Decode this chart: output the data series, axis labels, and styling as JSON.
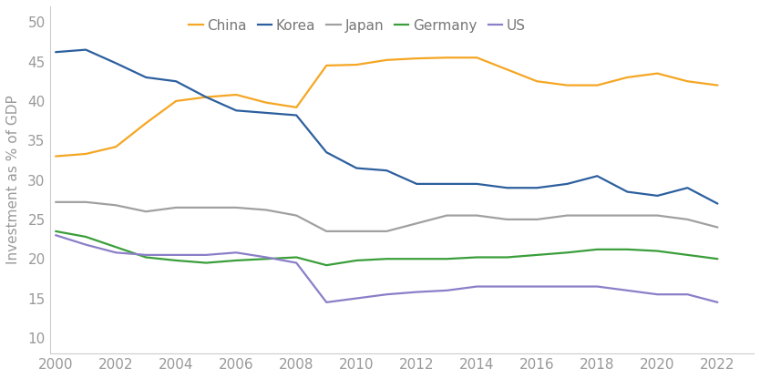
{
  "ylabel": "Investment as % of GDP",
  "ylim": [
    8,
    52
  ],
  "yticks": [
    10,
    15,
    20,
    25,
    30,
    35,
    40,
    45,
    50
  ],
  "xlim": [
    1999.8,
    2023.2
  ],
  "xticks": [
    2000,
    2002,
    2004,
    2006,
    2008,
    2010,
    2012,
    2014,
    2016,
    2018,
    2020,
    2022
  ],
  "background_color": "#ffffff",
  "series": {
    "China": {
      "color": "#f5a623",
      "data": {
        "2000": 33.0,
        "2001": 33.3,
        "2002": 34.2,
        "2003": 37.2,
        "2004": 40.0,
        "2005": 40.5,
        "2006": 40.8,
        "2007": 39.8,
        "2008": 39.2,
        "2009": 44.5,
        "2010": 44.6,
        "2011": 45.2,
        "2012": 45.4,
        "2013": 45.5,
        "2014": 45.5,
        "2015": 44.0,
        "2016": 42.5,
        "2017": 42.0,
        "2018": 42.0,
        "2019": 43.0,
        "2020": 43.5,
        "2021": 42.5,
        "2022": 42.0
      }
    },
    "Korea": {
      "color": "#2c5f9e",
      "data": {
        "2000": 46.2,
        "2001": 46.5,
        "2002": 44.8,
        "2003": 43.0,
        "2004": 42.5,
        "2005": 40.5,
        "2006": 38.8,
        "2007": 38.5,
        "2008": 38.2,
        "2009": 33.5,
        "2010": 31.5,
        "2011": 31.2,
        "2012": 29.5,
        "2013": 29.5,
        "2014": 29.5,
        "2015": 29.0,
        "2016": 29.0,
        "2017": 29.5,
        "2018": 30.5,
        "2019": 28.5,
        "2020": 28.0,
        "2021": 29.0,
        "2022": 27.0
      }
    },
    "Japan": {
      "color": "#a0a0a0",
      "data": {
        "2000": 27.2,
        "2001": 27.2,
        "2002": 26.8,
        "2003": 26.0,
        "2004": 26.5,
        "2005": 26.5,
        "2006": 26.5,
        "2007": 26.2,
        "2008": 25.5,
        "2009": 23.5,
        "2010": 23.5,
        "2011": 23.5,
        "2012": 24.5,
        "2013": 25.5,
        "2014": 25.5,
        "2015": 25.0,
        "2016": 25.0,
        "2017": 25.5,
        "2018": 25.5,
        "2019": 25.5,
        "2020": 25.5,
        "2021": 25.0,
        "2022": 24.0
      }
    },
    "Germany": {
      "color": "#3a9e3a",
      "data": {
        "2000": 23.5,
        "2001": 22.8,
        "2002": 21.5,
        "2003": 20.2,
        "2004": 19.8,
        "2005": 19.5,
        "2006": 19.8,
        "2007": 20.0,
        "2008": 20.2,
        "2009": 19.2,
        "2010": 19.8,
        "2011": 20.0,
        "2012": 20.0,
        "2013": 20.0,
        "2014": 20.2,
        "2015": 20.2,
        "2016": 20.5,
        "2017": 20.8,
        "2018": 21.2,
        "2019": 21.2,
        "2020": 21.0,
        "2021": 20.5,
        "2022": 20.0
      }
    },
    "US": {
      "color": "#8b7ec8",
      "data": {
        "2000": 23.0,
        "2001": 21.8,
        "2002": 20.8,
        "2003": 20.5,
        "2004": 20.5,
        "2005": 20.5,
        "2006": 20.8,
        "2007": 20.2,
        "2008": 19.5,
        "2009": 14.5,
        "2010": 15.0,
        "2011": 15.5,
        "2012": 15.8,
        "2013": 16.0,
        "2014": 16.5,
        "2015": 16.5,
        "2016": 16.5,
        "2017": 16.5,
        "2018": 16.5,
        "2019": 16.0,
        "2020": 15.5,
        "2021": 15.5,
        "2022": 14.5
      }
    }
  },
  "legend_order": [
    "China",
    "Korea",
    "Japan",
    "Germany",
    "US"
  ],
  "legend_text_color": "#777777",
  "tick_color": "#999999",
  "spine_color": "#cccccc",
  "linewidth": 1.6,
  "fontsize_ticks": 11,
  "fontsize_legend": 11,
  "fontsize_ylabel": 11
}
